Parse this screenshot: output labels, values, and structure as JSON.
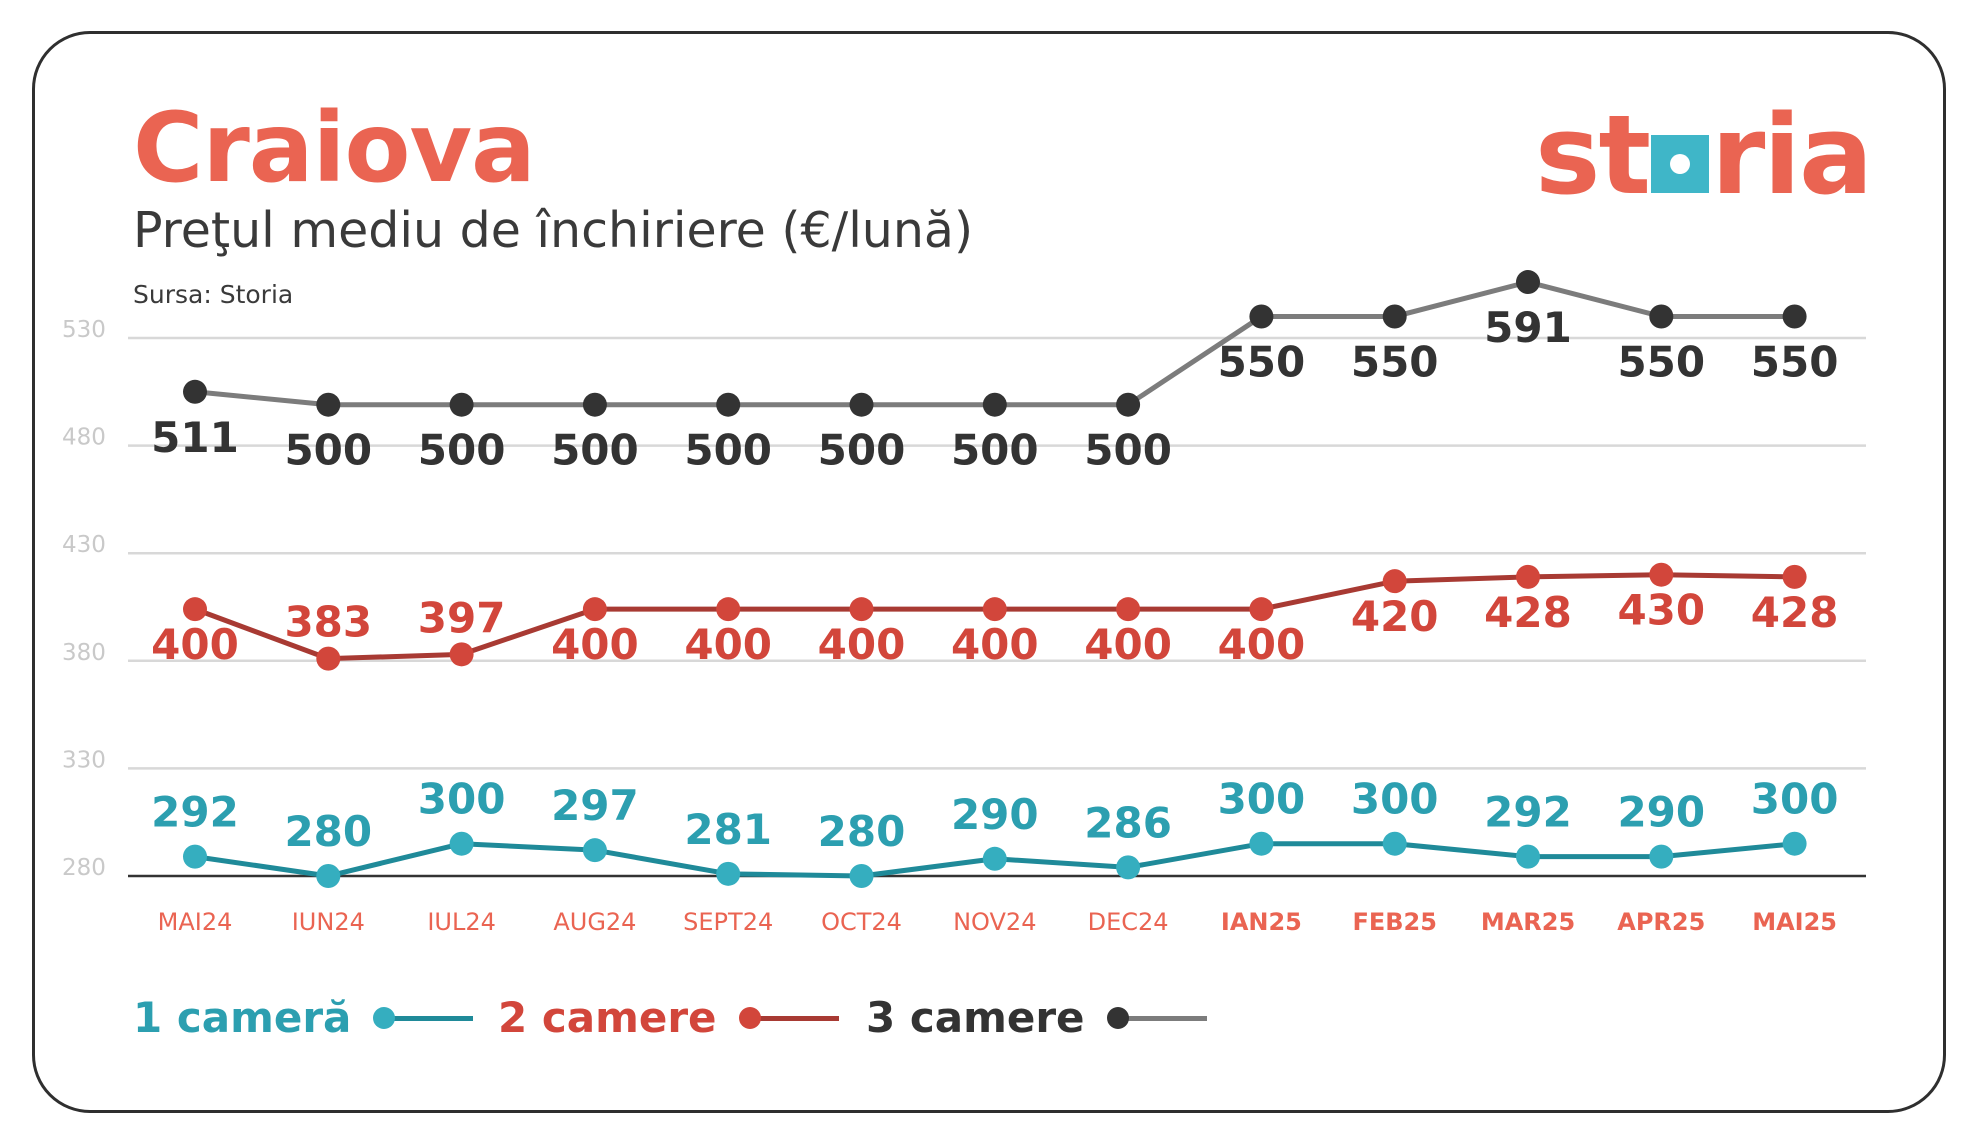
{
  "header": {
    "title": "Craiova",
    "subtitle": "Preţul mediu de închiriere (€/lună)",
    "source": "Sursa: Storia"
  },
  "logo": {
    "text_left": "st",
    "text_right": "ria",
    "brand_color": "#ea6452",
    "accent_color": "#3fb6c8"
  },
  "chart_data": {
    "type": "line",
    "categories": [
      "MAI24",
      "IUN24",
      "IUL24",
      "AUG24",
      "SEPT24",
      "OCT24",
      "NOV24",
      "DEC24",
      "IAN25",
      "FEB25",
      "MAR25",
      "APR25",
      "MAI25"
    ],
    "highlighted_categories": [
      "IAN25",
      "FEB25",
      "MAR25",
      "APR25",
      "MAI25"
    ],
    "y_ticks": [
      280,
      330,
      380,
      430,
      480,
      530
    ],
    "ylim": [
      280,
      530
    ],
    "grid": true,
    "series": [
      {
        "name": "3 camere",
        "values": [
          511,
          500,
          500,
          500,
          500,
          500,
          500,
          500,
          550,
          550,
          591,
          550,
          550
        ],
        "labels": [
          "511",
          "500",
          "500",
          "500",
          "500",
          "500",
          "500",
          "500",
          "550",
          "550",
          "591",
          "550",
          "550"
        ],
        "plot_levels": [
          505,
          499,
          499,
          499,
          499,
          499,
          499,
          499,
          540,
          540,
          556,
          540,
          540
        ],
        "line_color": "#7c7c7c",
        "point_color": "#333333",
        "label_color": "#333333"
      },
      {
        "name": "2 camere",
        "values": [
          400,
          383,
          397,
          400,
          400,
          400,
          400,
          400,
          400,
          420,
          428,
          430,
          428
        ],
        "labels": [
          "400",
          "383",
          "397",
          "400",
          "400",
          "400",
          "400",
          "400",
          "400",
          "420",
          "428",
          "430",
          "428"
        ],
        "plot_levels": [
          404,
          381,
          383,
          404,
          404,
          404,
          404,
          404,
          404,
          417,
          419,
          420,
          419
        ],
        "line_color": "#a83a33",
        "point_color": "#d2463b",
        "label_color": "#d2463b"
      },
      {
        "name": "1 cameră",
        "values": [
          292,
          280,
          300,
          297,
          281,
          280,
          290,
          286,
          300,
          300,
          292,
          290,
          300
        ],
        "labels": [
          "292",
          "280",
          "300",
          "297",
          "281",
          "280",
          "290",
          "286",
          "300",
          "300",
          "292",
          "290",
          "300"
        ],
        "plot_levels": [
          289,
          280,
          295,
          292,
          281,
          280,
          288,
          284,
          295,
          295,
          289,
          289,
          295
        ],
        "line_color": "#1f8a99",
        "point_color": "#35aebf",
        "label_color": "#2c9fb0"
      }
    ]
  },
  "legend": [
    {
      "label": "1 cameră",
      "color": "#2c9fb0",
      "line_color": "#1f8a99"
    },
    {
      "label": "2 camere",
      "color": "#d2463b",
      "line_color": "#a83a33"
    },
    {
      "label": "3 camere",
      "color": "#333333",
      "line_color": "#7c7c7c"
    }
  ]
}
